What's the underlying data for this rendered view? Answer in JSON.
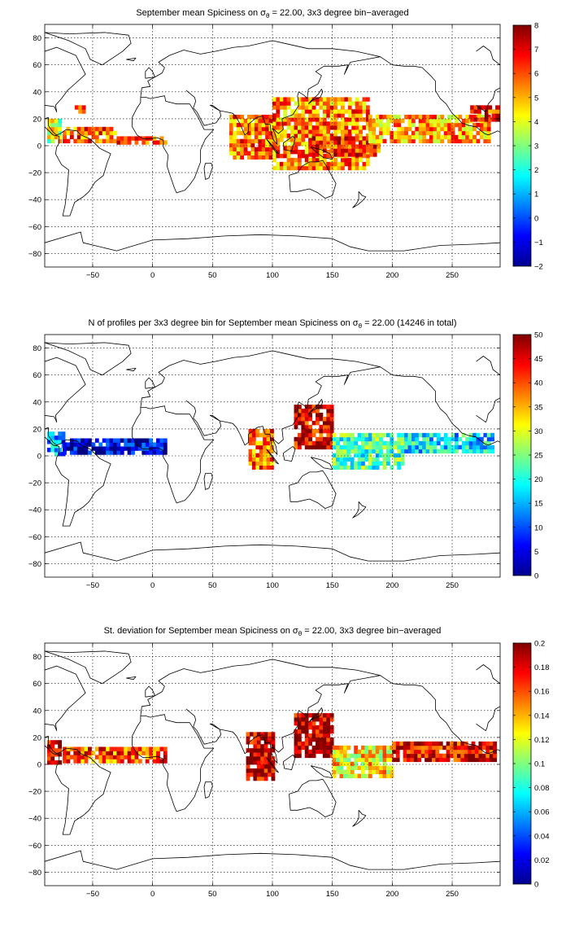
{
  "figure": {
    "colormap": "jet",
    "grid": true,
    "x_ticks": [
      -50,
      0,
      50,
      100,
      150,
      200,
      250
    ],
    "y_ticks": [
      80,
      60,
      40,
      20,
      0,
      -20,
      -40,
      -60,
      -80
    ],
    "panels": [
      {
        "title_parts": [
          "September mean Spiciness on σ",
          "θ",
          " = 22.00, 3x3 degree bin−averaged"
        ],
        "colorbar": {
          "min": -2,
          "max": 8,
          "ticks": [
            "8",
            "7",
            "6",
            "5",
            "4",
            "3",
            "2",
            "1",
            "0",
            "−1",
            "−2"
          ]
        }
      },
      {
        "title_parts": [
          "N of profiles per 3x3 degree bin for September mean Spiciness on σ",
          "θ",
          " = 22.00 (14246 in total)"
        ],
        "colorbar": {
          "min": 0,
          "max": 50,
          "ticks": [
            "50",
            "45",
            "40",
            "35",
            "30",
            "25",
            "20",
            "15",
            "10",
            "5",
            "0"
          ]
        }
      },
      {
        "title_parts": [
          "St. deviation for September mean Spiciness on σ",
          "θ",
          " = 22.00, 3x3 degree bin−averaged"
        ],
        "colorbar": {
          "min": 0,
          "max": 0.2,
          "ticks": [
            "0.2",
            "0.18",
            "0.16",
            "0.14",
            "0.12",
            "0.1",
            "0.08",
            "0.06",
            "0.04",
            "0.02",
            "0"
          ]
        }
      }
    ]
  },
  "chart_data": [
    {
      "type": "heatmap",
      "title": "September mean Spiciness on σθ = 22.00, 3x3 degree bin−averaged",
      "xlim": [
        -90,
        290
      ],
      "ylim": [
        -90,
        90
      ],
      "clim": [
        -2,
        8
      ],
      "bin_size_deg": 3,
      "regions": [
        {
          "lon": [
            -88,
            -78
          ],
          "lat": [
            2,
            18
          ],
          "value": 3.8
        },
        {
          "lon": [
            -75,
            -30
          ],
          "lat": [
            2,
            12
          ],
          "value": 5.8
        },
        {
          "lon": [
            -30,
            12
          ],
          "lat": [
            1,
            6
          ],
          "value": 6.0
        },
        {
          "lon": [
            -65,
            -58
          ],
          "lat": [
            24,
            30
          ],
          "value": 6.8
        },
        {
          "lon": [
            64,
            100
          ],
          "lat": [
            -10,
            22
          ],
          "value": 5.6
        },
        {
          "lon": [
            100,
            180
          ],
          "lat": [
            -18,
            36
          ],
          "value": 5.5
        },
        {
          "lon": [
            130,
            190
          ],
          "lat": [
            -8,
            6
          ],
          "value": 6.3
        },
        {
          "lon": [
            180,
            280
          ],
          "lat": [
            2,
            22
          ],
          "value": 5.2
        },
        {
          "lon": [
            265,
            290
          ],
          "lat": [
            18,
            30
          ],
          "value": 6.5
        }
      ]
    },
    {
      "type": "heatmap",
      "title": "N of profiles per 3x3 degree bin for September mean Spiciness on σθ = 22.00 (14246 in total)",
      "xlim": [
        -90,
        290
      ],
      "ylim": [
        -90,
        90
      ],
      "clim": [
        0,
        50
      ],
      "total_profiles": 14246,
      "regions": [
        {
          "lon": [
            -88,
            -75
          ],
          "lat": [
            0,
            18
          ],
          "value": 14
        },
        {
          "lon": [
            -75,
            12
          ],
          "lat": [
            1,
            12
          ],
          "value": 4
        },
        {
          "lon": [
            80,
            100
          ],
          "lat": [
            -10,
            20
          ],
          "value": 38
        },
        {
          "lon": [
            118,
            150
          ],
          "lat": [
            5,
            38
          ],
          "value": 45
        },
        {
          "lon": [
            150,
            210
          ],
          "lat": [
            -10,
            15
          ],
          "value": 22
        },
        {
          "lon": [
            210,
            285
          ],
          "lat": [
            2,
            15
          ],
          "value": 18
        }
      ]
    },
    {
      "type": "heatmap",
      "title": "St. deviation for September mean Spiciness on σθ = 22.00, 3x3 degree bin−averaged",
      "xlim": [
        -90,
        290
      ],
      "ylim": [
        -90,
        90
      ],
      "clim": [
        0,
        0.2
      ],
      "regions": [
        {
          "lon": [
            -88,
            -78
          ],
          "lat": [
            0,
            18
          ],
          "value": 0.19
        },
        {
          "lon": [
            -75,
            12
          ],
          "lat": [
            1,
            12
          ],
          "value": 0.16
        },
        {
          "lon": [
            78,
            100
          ],
          "lat": [
            -12,
            22
          ],
          "value": 0.19
        },
        {
          "lon": [
            118,
            150
          ],
          "lat": [
            5,
            38
          ],
          "value": 0.19
        },
        {
          "lon": [
            150,
            200
          ],
          "lat": [
            -10,
            12
          ],
          "value": 0.13
        },
        {
          "lon": [
            200,
            285
          ],
          "lat": [
            2,
            16
          ],
          "value": 0.18
        }
      ]
    }
  ]
}
